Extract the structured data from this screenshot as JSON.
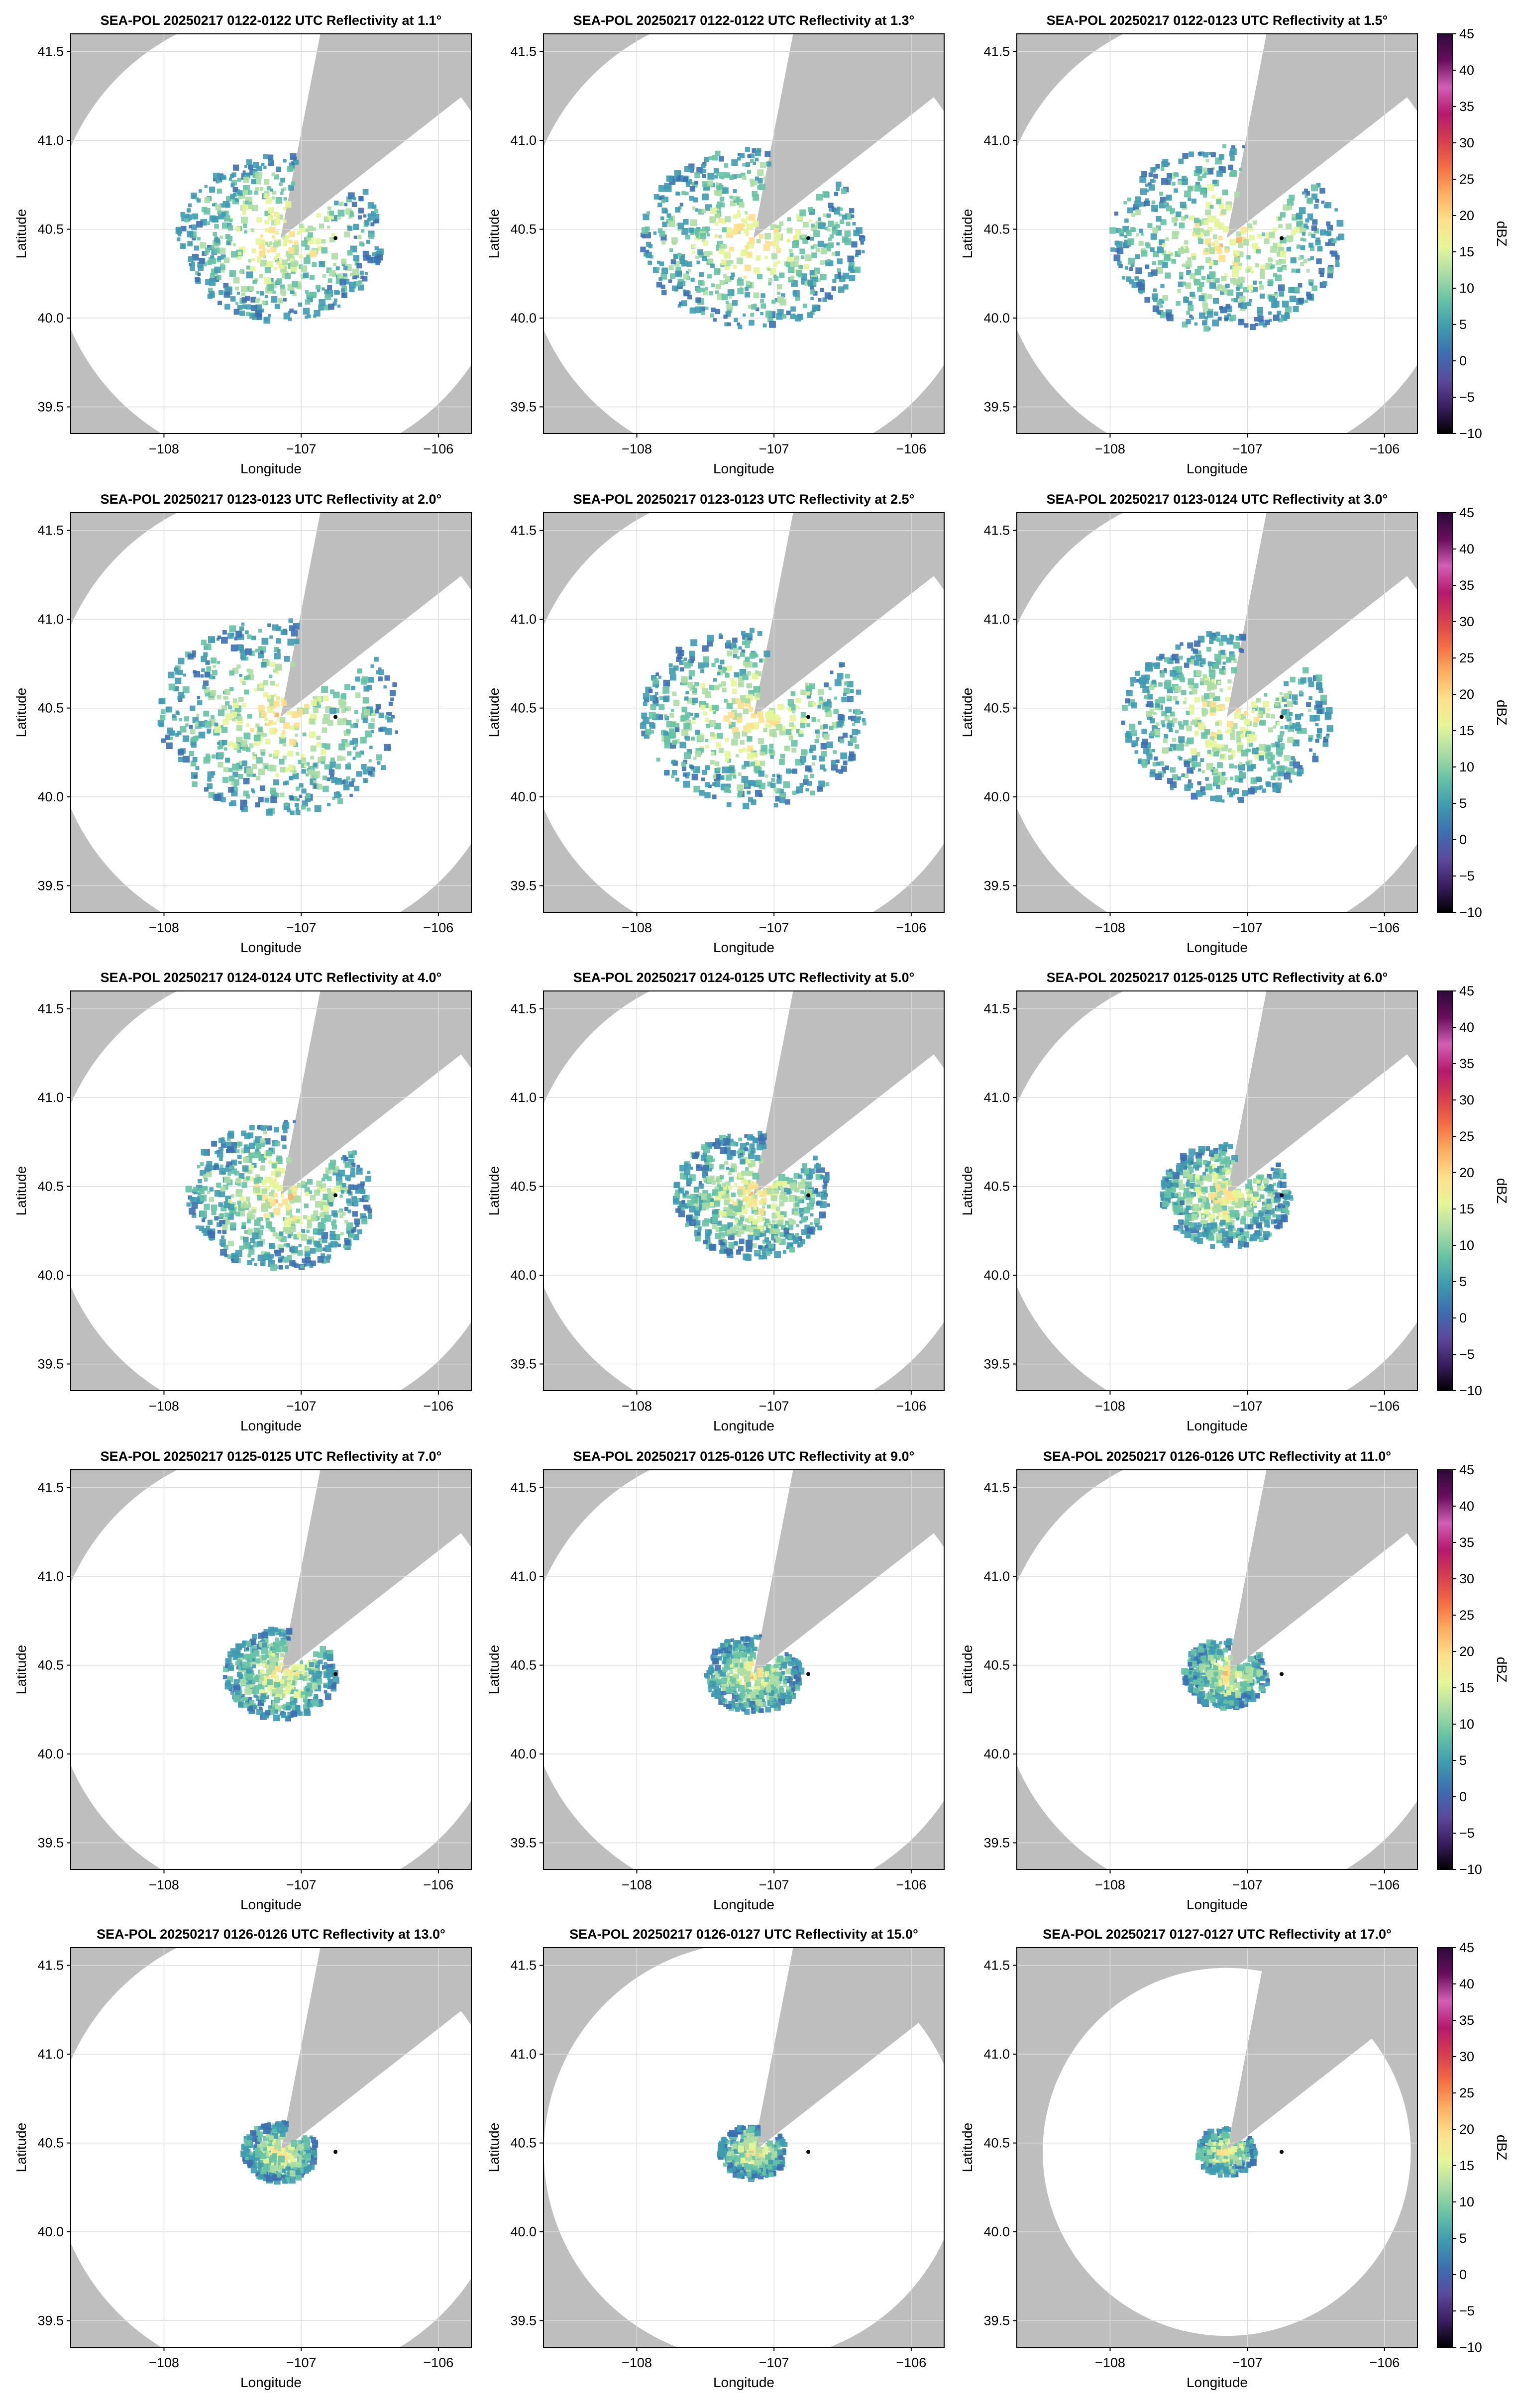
{
  "figure": {
    "colors": {
      "no_coverage": "#bebebe",
      "coverage": "#ffffff",
      "grid": "#dcdcdc",
      "radar_marker": "#000000"
    }
  },
  "colorbar": {
    "label": "dBZ",
    "ticks": [
      45,
      40,
      35,
      30,
      25,
      20,
      15,
      10,
      5,
      0,
      -5,
      -10
    ],
    "range": [
      -10,
      45
    ],
    "colormap": [
      "#000000",
      "#3b1e63",
      "#5b4a9c",
      "#3c6fb0",
      "#3f9bb0",
      "#66c2a5",
      "#abdda4",
      "#e6f598",
      "#fee08b",
      "#fdae61",
      "#f46d43",
      "#d53e4f",
      "#b5196e",
      "#d35fb7",
      "#6a0d5e",
      "#2d0a3a"
    ]
  },
  "chart_data": [
    {
      "type": "heatmap",
      "title": "SEA-POL 20250217 0122-0122 UTC Reflectivity at 1.1°",
      "xlabel": "Longitude",
      "ylabel": "Latitude",
      "xlim": [
        -108.68,
        -105.76
      ],
      "ylim": [
        39.35,
        41.6
      ],
      "xticks": [
        -108,
        -107,
        -106
      ],
      "xtick_labels": [
        "−108",
        "−107",
        "−106"
      ],
      "yticks": [
        39.5,
        40.0,
        40.5,
        41.0,
        41.5
      ],
      "ytick_labels": [
        "39.5",
        "40.0",
        "40.5",
        "41.0",
        "41.5"
      ],
      "grid": true,
      "radar_site": [
        -107.15,
        40.45
      ],
      "marker": [
        -106.75,
        40.45
      ],
      "coverage_radius_km": 143,
      "echo_extent_deg": 0.55,
      "colorbar": false
    },
    {
      "type": "heatmap",
      "title": "SEA-POL 20250217 0122-0122 UTC Reflectivity at 1.3°",
      "xlabel": "Longitude",
      "ylabel": "Latitude",
      "xlim": [
        -108.68,
        -105.76
      ],
      "ylim": [
        39.35,
        41.6
      ],
      "xticks": [
        -108,
        -107,
        -106
      ],
      "xtick_labels": [
        "−108",
        "−107",
        "−106"
      ],
      "yticks": [
        39.5,
        40.0,
        40.5,
        41.0,
        41.5
      ],
      "ytick_labels": [
        "39.5",
        "40.0",
        "40.5",
        "41.0",
        "41.5"
      ],
      "grid": true,
      "radar_site": [
        -107.15,
        40.45
      ],
      "marker": [
        -106.75,
        40.45
      ],
      "coverage_radius_km": 143,
      "echo_extent_deg": 0.6,
      "colorbar": false
    },
    {
      "type": "heatmap",
      "title": "SEA-POL 20250217 0122-0123 UTC Reflectivity at 1.5°",
      "xlabel": "Longitude",
      "ylabel": "Latitude",
      "xlim": [
        -108.68,
        -105.76
      ],
      "ylim": [
        39.35,
        41.6
      ],
      "xticks": [
        -108,
        -107,
        -106
      ],
      "xtick_labels": [
        "−108",
        "−107",
        "−106"
      ],
      "yticks": [
        39.5,
        40.0,
        40.5,
        41.0,
        41.5
      ],
      "ytick_labels": [
        "39.5",
        "40.0",
        "40.5",
        "41.0",
        "41.5"
      ],
      "grid": true,
      "radar_site": [
        -107.15,
        40.45
      ],
      "marker": [
        -106.75,
        40.45
      ],
      "coverage_radius_km": 143,
      "echo_extent_deg": 0.62,
      "colorbar": true
    },
    {
      "type": "heatmap",
      "title": "SEA-POL 20250217 0123-0123 UTC Reflectivity at 2.0°",
      "xlabel": "Longitude",
      "ylabel": "Latitude",
      "xlim": [
        -108.68,
        -105.76
      ],
      "ylim": [
        39.35,
        41.6
      ],
      "xticks": [
        -108,
        -107,
        -106
      ],
      "xtick_labels": [
        "−108",
        "−107",
        "−106"
      ],
      "yticks": [
        39.5,
        40.0,
        40.5,
        41.0,
        41.5
      ],
      "ytick_labels": [
        "39.5",
        "40.0",
        "40.5",
        "41.0",
        "41.5"
      ],
      "grid": true,
      "radar_site": [
        -107.15,
        40.45
      ],
      "marker": [
        -106.75,
        40.45
      ],
      "coverage_radius_km": 143,
      "echo_extent_deg": 0.65,
      "colorbar": false
    },
    {
      "type": "heatmap",
      "title": "SEA-POL 20250217 0123-0123 UTC Reflectivity at 2.5°",
      "xlabel": "Longitude",
      "ylabel": "Latitude",
      "xlim": [
        -108.68,
        -105.76
      ],
      "ylim": [
        39.35,
        41.6
      ],
      "xticks": [
        -108,
        -107,
        -106
      ],
      "xtick_labels": [
        "−108",
        "−107",
        "−106"
      ],
      "yticks": [
        39.5,
        40.0,
        40.5,
        41.0,
        41.5
      ],
      "ytick_labels": [
        "39.5",
        "40.0",
        "40.5",
        "41.0",
        "41.5"
      ],
      "grid": true,
      "radar_site": [
        -107.15,
        40.45
      ],
      "marker": [
        -106.75,
        40.45
      ],
      "coverage_radius_km": 143,
      "echo_extent_deg": 0.6,
      "colorbar": false
    },
    {
      "type": "heatmap",
      "title": "SEA-POL 20250217 0123-0124 UTC Reflectivity at 3.0°",
      "xlabel": "Longitude",
      "ylabel": "Latitude",
      "xlim": [
        -108.68,
        -105.76
      ],
      "ylim": [
        39.35,
        41.6
      ],
      "xticks": [
        -108,
        -107,
        -106
      ],
      "xtick_labels": [
        "−108",
        "−107",
        "−106"
      ],
      "yticks": [
        39.5,
        40.0,
        40.5,
        41.0,
        41.5
      ],
      "ytick_labels": [
        "39.5",
        "40.0",
        "40.5",
        "41.0",
        "41.5"
      ],
      "grid": true,
      "radar_site": [
        -107.15,
        40.45
      ],
      "marker": [
        -106.75,
        40.45
      ],
      "coverage_radius_km": 143,
      "echo_extent_deg": 0.56,
      "colorbar": true
    },
    {
      "type": "heatmap",
      "title": "SEA-POL 20250217 0124-0124 UTC Reflectivity at 4.0°",
      "xlabel": "Longitude",
      "ylabel": "Latitude",
      "xlim": [
        -108.68,
        -105.76
      ],
      "ylim": [
        39.35,
        41.6
      ],
      "xticks": [
        -108,
        -107,
        -106
      ],
      "xtick_labels": [
        "−108",
        "−107",
        "−106"
      ],
      "yticks": [
        39.5,
        40.0,
        40.5,
        41.0,
        41.5
      ],
      "ytick_labels": [
        "39.5",
        "40.0",
        "40.5",
        "41.0",
        "41.5"
      ],
      "grid": true,
      "radar_site": [
        -107.15,
        40.45
      ],
      "marker": [
        -106.75,
        40.45
      ],
      "coverage_radius_km": 143,
      "echo_extent_deg": 0.5,
      "colorbar": false
    },
    {
      "type": "heatmap",
      "title": "SEA-POL 20250217 0124-0125 UTC Reflectivity at 5.0°",
      "xlabel": "Longitude",
      "ylabel": "Latitude",
      "xlim": [
        -108.68,
        -105.76
      ],
      "ylim": [
        39.35,
        41.6
      ],
      "xticks": [
        -108,
        -107,
        -106
      ],
      "xtick_labels": [
        "−108",
        "−107",
        "−106"
      ],
      "yticks": [
        39.5,
        40.0,
        40.5,
        41.0,
        41.5
      ],
      "ytick_labels": [
        "39.5",
        "40.0",
        "40.5",
        "41.0",
        "41.5"
      ],
      "grid": true,
      "radar_site": [
        -107.15,
        40.45
      ],
      "marker": [
        -106.75,
        40.45
      ],
      "coverage_radius_km": 143,
      "echo_extent_deg": 0.42,
      "colorbar": false
    },
    {
      "type": "heatmap",
      "title": "SEA-POL 20250217 0125-0125 UTC Reflectivity at 6.0°",
      "xlabel": "Longitude",
      "ylabel": "Latitude",
      "xlim": [
        -108.68,
        -105.76
      ],
      "ylim": [
        39.35,
        41.6
      ],
      "xticks": [
        -108,
        -107,
        -106
      ],
      "xtick_labels": [
        "−108",
        "−107",
        "−106"
      ],
      "yticks": [
        39.5,
        40.0,
        40.5,
        41.0,
        41.5
      ],
      "ytick_labels": [
        "39.5",
        "40.0",
        "40.5",
        "41.0",
        "41.5"
      ],
      "grid": true,
      "radar_site": [
        -107.15,
        40.45
      ],
      "marker": [
        -106.75,
        40.45
      ],
      "coverage_radius_km": 143,
      "echo_extent_deg": 0.35,
      "colorbar": true
    },
    {
      "type": "heatmap",
      "title": "SEA-POL 20250217 0125-0125 UTC Reflectivity at 7.0°",
      "xlabel": "Longitude",
      "ylabel": "Latitude",
      "xlim": [
        -108.68,
        -105.76
      ],
      "ylim": [
        39.35,
        41.6
      ],
      "xticks": [
        -108,
        -107,
        -106
      ],
      "xtick_labels": [
        "−108",
        "−107",
        "−106"
      ],
      "yticks": [
        39.5,
        40.0,
        40.5,
        41.0,
        41.5
      ],
      "ytick_labels": [
        "39.5",
        "40.0",
        "40.5",
        "41.0",
        "41.5"
      ],
      "grid": true,
      "radar_site": [
        -107.15,
        40.45
      ],
      "marker": [
        -106.75,
        40.45
      ],
      "coverage_radius_km": 143,
      "echo_extent_deg": 0.3,
      "colorbar": false
    },
    {
      "type": "heatmap",
      "title": "SEA-POL 20250217 0125-0126 UTC Reflectivity at 9.0°",
      "xlabel": "Longitude",
      "ylabel": "Latitude",
      "xlim": [
        -108.68,
        -105.76
      ],
      "ylim": [
        39.35,
        41.6
      ],
      "xticks": [
        -108,
        -107,
        -106
      ],
      "xtick_labels": [
        "−108",
        "−107",
        "−106"
      ],
      "yticks": [
        39.5,
        40.0,
        40.5,
        41.0,
        41.5
      ],
      "ytick_labels": [
        "39.5",
        "40.0",
        "40.5",
        "41.0",
        "41.5"
      ],
      "grid": true,
      "radar_site": [
        -107.15,
        40.45
      ],
      "marker": [
        -106.75,
        40.45
      ],
      "coverage_radius_km": 143,
      "echo_extent_deg": 0.26,
      "colorbar": false
    },
    {
      "type": "heatmap",
      "title": "SEA-POL 20250217 0126-0126 UTC Reflectivity at 11.0°",
      "xlabel": "Longitude",
      "ylabel": "Latitude",
      "xlim": [
        -108.68,
        -105.76
      ],
      "ylim": [
        39.35,
        41.6
      ],
      "xticks": [
        -108,
        -107,
        -106
      ],
      "xtick_labels": [
        "−108",
        "−107",
        "−106"
      ],
      "yticks": [
        39.5,
        40.0,
        40.5,
        41.0,
        41.5
      ],
      "ytick_labels": [
        "39.5",
        "40.0",
        "40.5",
        "41.0",
        "41.5"
      ],
      "grid": true,
      "radar_site": [
        -107.15,
        40.45
      ],
      "marker": [
        -106.75,
        40.45
      ],
      "coverage_radius_km": 143,
      "echo_extent_deg": 0.23,
      "colorbar": true
    },
    {
      "type": "heatmap",
      "title": "SEA-POL 20250217 0126-0126 UTC Reflectivity at 13.0°",
      "xlabel": "Longitude",
      "ylabel": "Latitude",
      "xlim": [
        -108.68,
        -105.76
      ],
      "ylim": [
        39.35,
        41.6
      ],
      "xticks": [
        -108,
        -107,
        -106
      ],
      "xtick_labels": [
        "−108",
        "−107",
        "−106"
      ],
      "yticks": [
        39.5,
        40.0,
        40.5,
        41.0,
        41.5
      ],
      "ytick_labels": [
        "39.5",
        "40.0",
        "40.5",
        "41.0",
        "41.5"
      ],
      "grid": true,
      "radar_site": [
        -107.15,
        40.45
      ],
      "marker": [
        -106.75,
        40.45
      ],
      "coverage_radius_km": 143,
      "echo_extent_deg": 0.2,
      "colorbar": false
    },
    {
      "type": "heatmap",
      "title": "SEA-POL 20250217 0126-0127 UTC Reflectivity at 15.0°",
      "xlabel": "Longitude",
      "ylabel": "Latitude",
      "xlim": [
        -108.68,
        -105.76
      ],
      "ylim": [
        39.35,
        41.6
      ],
      "xticks": [
        -108,
        -107,
        -106
      ],
      "xtick_labels": [
        "−108",
        "−107",
        "−106"
      ],
      "yticks": [
        39.5,
        40.0,
        40.5,
        41.0,
        41.5
      ],
      "ytick_labels": [
        "39.5",
        "40.0",
        "40.5",
        "41.0",
        "41.5"
      ],
      "grid": true,
      "radar_site": [
        -107.15,
        40.45
      ],
      "marker": [
        -106.75,
        40.45
      ],
      "coverage_radius_km": 131,
      "echo_extent_deg": 0.18,
      "colorbar": false
    },
    {
      "type": "heatmap",
      "title": "SEA-POL 20250217 0127-0127 UTC Reflectivity at 17.0°",
      "xlabel": "Longitude",
      "ylabel": "Latitude",
      "xlim": [
        -108.68,
        -105.76
      ],
      "ylim": [
        39.35,
        41.6
      ],
      "xticks": [
        -108,
        -107,
        -106
      ],
      "xtick_labels": [
        "−108",
        "−107",
        "−106"
      ],
      "yticks": [
        39.5,
        40.0,
        40.5,
        41.0,
        41.5
      ],
      "ytick_labels": [
        "39.5",
        "40.0",
        "40.5",
        "41.0",
        "41.5"
      ],
      "grid": true,
      "radar_site": [
        -107.15,
        40.45
      ],
      "marker": [
        -106.75,
        40.45
      ],
      "coverage_radius_km": 115,
      "echo_extent_deg": 0.16,
      "colorbar": true
    }
  ]
}
